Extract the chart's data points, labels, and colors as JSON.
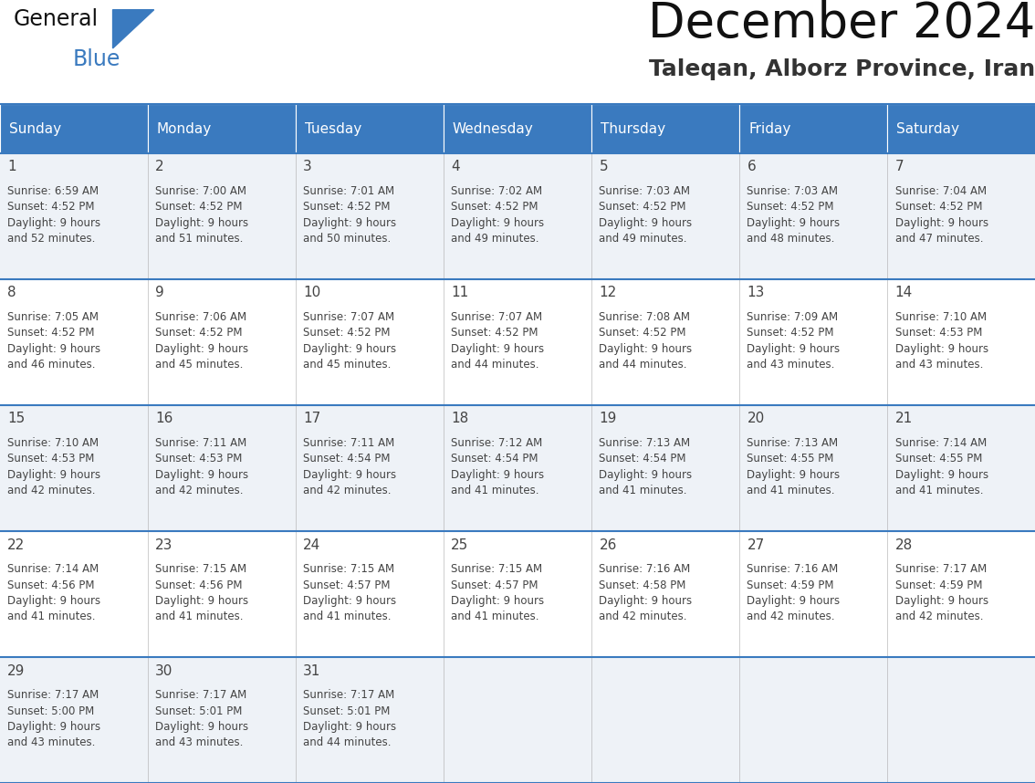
{
  "title": "December 2024",
  "subtitle": "Taleqan, Alborz Province, Iran",
  "header_color": "#3a7abf",
  "header_text_color": "#ffffff",
  "cell_bg_color_odd": "#eef2f7",
  "cell_bg_color_even": "#ffffff",
  "border_color": "#3a7abf",
  "grid_line_color": "#aaaaaa",
  "days_of_week": [
    "Sunday",
    "Monday",
    "Tuesday",
    "Wednesday",
    "Thursday",
    "Friday",
    "Saturday"
  ],
  "weeks": [
    [
      {
        "day": "1",
        "sunrise": "6:59 AM",
        "sunset": "4:52 PM",
        "daylight_hrs": "9 hours",
        "daylight_min": "and 52 minutes."
      },
      {
        "day": "2",
        "sunrise": "7:00 AM",
        "sunset": "4:52 PM",
        "daylight_hrs": "9 hours",
        "daylight_min": "and 51 minutes."
      },
      {
        "day": "3",
        "sunrise": "7:01 AM",
        "sunset": "4:52 PM",
        "daylight_hrs": "9 hours",
        "daylight_min": "and 50 minutes."
      },
      {
        "day": "4",
        "sunrise": "7:02 AM",
        "sunset": "4:52 PM",
        "daylight_hrs": "9 hours",
        "daylight_min": "and 49 minutes."
      },
      {
        "day": "5",
        "sunrise": "7:03 AM",
        "sunset": "4:52 PM",
        "daylight_hrs": "9 hours",
        "daylight_min": "and 49 minutes."
      },
      {
        "day": "6",
        "sunrise": "7:03 AM",
        "sunset": "4:52 PM",
        "daylight_hrs": "9 hours",
        "daylight_min": "and 48 minutes."
      },
      {
        "day": "7",
        "sunrise": "7:04 AM",
        "sunset": "4:52 PM",
        "daylight_hrs": "9 hours",
        "daylight_min": "and 47 minutes."
      }
    ],
    [
      {
        "day": "8",
        "sunrise": "7:05 AM",
        "sunset": "4:52 PM",
        "daylight_hrs": "9 hours",
        "daylight_min": "and 46 minutes."
      },
      {
        "day": "9",
        "sunrise": "7:06 AM",
        "sunset": "4:52 PM",
        "daylight_hrs": "9 hours",
        "daylight_min": "and 45 minutes."
      },
      {
        "day": "10",
        "sunrise": "7:07 AM",
        "sunset": "4:52 PM",
        "daylight_hrs": "9 hours",
        "daylight_min": "and 45 minutes."
      },
      {
        "day": "11",
        "sunrise": "7:07 AM",
        "sunset": "4:52 PM",
        "daylight_hrs": "9 hours",
        "daylight_min": "and 44 minutes."
      },
      {
        "day": "12",
        "sunrise": "7:08 AM",
        "sunset": "4:52 PM",
        "daylight_hrs": "9 hours",
        "daylight_min": "and 44 minutes."
      },
      {
        "day": "13",
        "sunrise": "7:09 AM",
        "sunset": "4:52 PM",
        "daylight_hrs": "9 hours",
        "daylight_min": "and 43 minutes."
      },
      {
        "day": "14",
        "sunrise": "7:10 AM",
        "sunset": "4:53 PM",
        "daylight_hrs": "9 hours",
        "daylight_min": "and 43 minutes."
      }
    ],
    [
      {
        "day": "15",
        "sunrise": "7:10 AM",
        "sunset": "4:53 PM",
        "daylight_hrs": "9 hours",
        "daylight_min": "and 42 minutes."
      },
      {
        "day": "16",
        "sunrise": "7:11 AM",
        "sunset": "4:53 PM",
        "daylight_hrs": "9 hours",
        "daylight_min": "and 42 minutes."
      },
      {
        "day": "17",
        "sunrise": "7:11 AM",
        "sunset": "4:54 PM",
        "daylight_hrs": "9 hours",
        "daylight_min": "and 42 minutes."
      },
      {
        "day": "18",
        "sunrise": "7:12 AM",
        "sunset": "4:54 PM",
        "daylight_hrs": "9 hours",
        "daylight_min": "and 41 minutes."
      },
      {
        "day": "19",
        "sunrise": "7:13 AM",
        "sunset": "4:54 PM",
        "daylight_hrs": "9 hours",
        "daylight_min": "and 41 minutes."
      },
      {
        "day": "20",
        "sunrise": "7:13 AM",
        "sunset": "4:55 PM",
        "daylight_hrs": "9 hours",
        "daylight_min": "and 41 minutes."
      },
      {
        "day": "21",
        "sunrise": "7:14 AM",
        "sunset": "4:55 PM",
        "daylight_hrs": "9 hours",
        "daylight_min": "and 41 minutes."
      }
    ],
    [
      {
        "day": "22",
        "sunrise": "7:14 AM",
        "sunset": "4:56 PM",
        "daylight_hrs": "9 hours",
        "daylight_min": "and 41 minutes."
      },
      {
        "day": "23",
        "sunrise": "7:15 AM",
        "sunset": "4:56 PM",
        "daylight_hrs": "9 hours",
        "daylight_min": "and 41 minutes."
      },
      {
        "day": "24",
        "sunrise": "7:15 AM",
        "sunset": "4:57 PM",
        "daylight_hrs": "9 hours",
        "daylight_min": "and 41 minutes."
      },
      {
        "day": "25",
        "sunrise": "7:15 AM",
        "sunset": "4:57 PM",
        "daylight_hrs": "9 hours",
        "daylight_min": "and 41 minutes."
      },
      {
        "day": "26",
        "sunrise": "7:16 AM",
        "sunset": "4:58 PM",
        "daylight_hrs": "9 hours",
        "daylight_min": "and 42 minutes."
      },
      {
        "day": "27",
        "sunrise": "7:16 AM",
        "sunset": "4:59 PM",
        "daylight_hrs": "9 hours",
        "daylight_min": "and 42 minutes."
      },
      {
        "day": "28",
        "sunrise": "7:17 AM",
        "sunset": "4:59 PM",
        "daylight_hrs": "9 hours",
        "daylight_min": "and 42 minutes."
      }
    ],
    [
      {
        "day": "29",
        "sunrise": "7:17 AM",
        "sunset": "5:00 PM",
        "daylight_hrs": "9 hours",
        "daylight_min": "and 43 minutes."
      },
      {
        "day": "30",
        "sunrise": "7:17 AM",
        "sunset": "5:01 PM",
        "daylight_hrs": "9 hours",
        "daylight_min": "and 43 minutes."
      },
      {
        "day": "31",
        "sunrise": "7:17 AM",
        "sunset": "5:01 PM",
        "daylight_hrs": "9 hours",
        "daylight_min": "and 44 minutes."
      },
      null,
      null,
      null,
      null
    ]
  ],
  "logo_text_general": "General",
  "logo_text_blue": "Blue",
  "logo_color_general": "#111111",
  "logo_color_blue": "#3a7abf",
  "title_fontsize": 38,
  "subtitle_fontsize": 18,
  "header_fontsize": 11,
  "day_num_fontsize": 11,
  "cell_text_fontsize": 8.5
}
